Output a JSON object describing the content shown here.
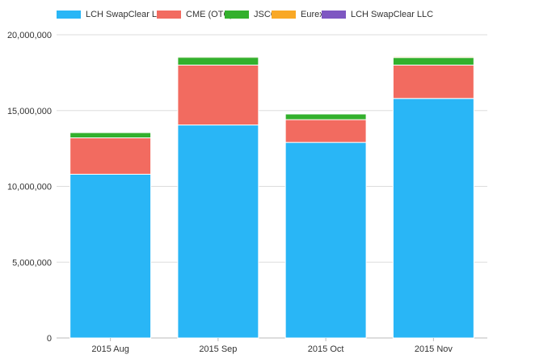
{
  "chart_data": {
    "type": "bar",
    "stacked": true,
    "categories": [
      "2015 Aug",
      "2015 Sep",
      "2015 Oct",
      "2015 Nov"
    ],
    "series": [
      {
        "name": "LCH SwapClear Ltd",
        "color": "#29b6f6",
        "values": [
          10800000,
          14050000,
          12900000,
          15800000
        ]
      },
      {
        "name": "CME (OTC)",
        "color": "#f26b60",
        "values": [
          2400000,
          3950000,
          1500000,
          2200000
        ]
      },
      {
        "name": "JSCC",
        "color": "#33b02d",
        "values": [
          350000,
          520000,
          380000,
          500000
        ]
      },
      {
        "name": "Eurex",
        "color": "#f9a825",
        "values": [
          40000,
          60000,
          40000,
          70000
        ]
      },
      {
        "name": "LCH SwapClear LLC",
        "color": "#7e57c2",
        "values": [
          10000,
          20000,
          10000,
          20000
        ]
      }
    ],
    "yticks": [
      "0",
      "5,000,000",
      "10,000,000",
      "15,000,000",
      "20,000,000"
    ],
    "ylim": [
      0,
      20000000
    ],
    "grid": true,
    "legend_position": "top"
  }
}
